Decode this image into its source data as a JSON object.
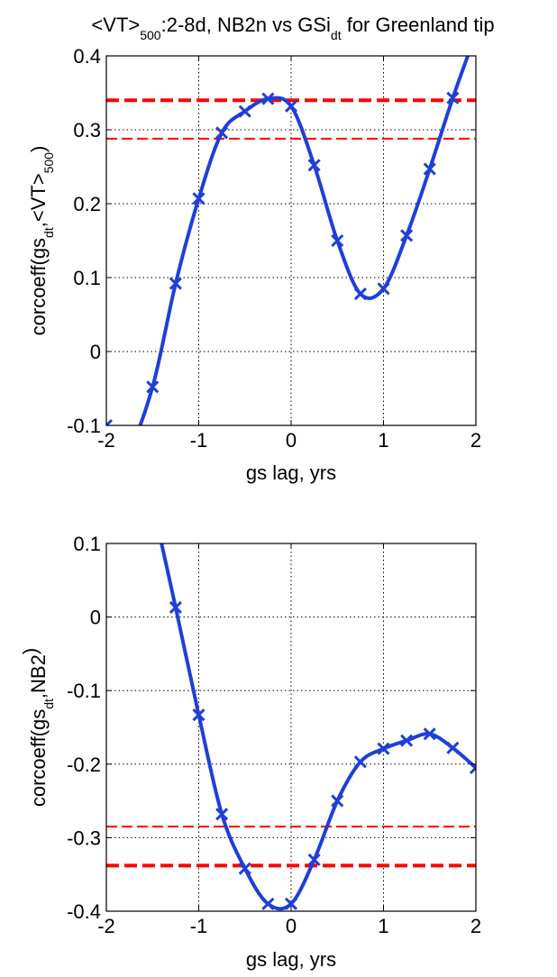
{
  "title_parts": {
    "a": "<VT>",
    "a_sub": "500",
    "b": ":2-8d, NB2n vs GSi",
    "b_sub": "dt",
    "c": " for Greenland tip"
  },
  "colors": {
    "line": "#1f3fd8",
    "sig_thick": "#ff0000",
    "sig_thin": "#ff0000",
    "grid": "#000000"
  },
  "chart_data": [
    {
      "type": "line",
      "xlabel": "gs lag, yrs",
      "ylabel_parts": {
        "a": "corcoeff(gs",
        "sub1": "dt",
        "b": ",<VT>",
        "sub2": "500",
        "c": ")"
      },
      "xlim": [
        -2,
        2
      ],
      "ylim": [
        -0.1,
        0.4
      ],
      "xticks": [
        -2,
        -1,
        0,
        1,
        2
      ],
      "xtick_labels": [
        "-2",
        "-1",
        "0",
        "1",
        "2"
      ],
      "yticks": [
        -0.1,
        0,
        0.1,
        0.2,
        0.3,
        0.4
      ],
      "ytick_labels": [
        "-0.1",
        "0",
        "0.1",
        "0.2",
        "0.3",
        "0.4"
      ],
      "grid": true,
      "x": [
        -2,
        -1.75,
        -1.5,
        -1.25,
        -1,
        -0.75,
        -0.5,
        -0.25,
        0,
        0.25,
        0.5,
        0.75,
        1,
        1.25,
        1.5,
        1.75,
        2
      ],
      "values": [
        -0.1,
        -0.125,
        -0.048,
        0.092,
        0.207,
        0.296,
        0.325,
        0.342,
        0.332,
        0.252,
        0.15,
        0.078,
        0.085,
        0.157,
        0.247,
        0.343,
        0.43
      ],
      "significance_lines": {
        "thick": 0.34,
        "thin": 0.288
      }
    },
    {
      "type": "line",
      "xlabel": "gs lag, yrs",
      "ylabel_parts": {
        "a": "corcoeff(gs",
        "sub1": "dt",
        "b": ",NB2",
        "sub2": "",
        "c": ")"
      },
      "xlim": [
        -2,
        2
      ],
      "ylim": [
        -0.4,
        0.1
      ],
      "xticks": [
        -2,
        -1,
        0,
        1,
        2
      ],
      "xtick_labels": [
        "-2",
        "-1",
        "0",
        "1",
        "2"
      ],
      "yticks": [
        -0.4,
        -0.3,
        -0.2,
        -0.1,
        0,
        0.1
      ],
      "ytick_labels": [
        "-0.4",
        "-0.3",
        "-0.2",
        "-0.1",
        "0",
        "0.1"
      ],
      "grid": true,
      "x": [
        -1.5,
        -1.25,
        -1,
        -0.75,
        -0.5,
        -0.25,
        0,
        0.25,
        0.5,
        0.75,
        1,
        1.25,
        1.5,
        1.75,
        2
      ],
      "values": [
        0.155,
        0.013,
        -0.133,
        -0.268,
        -0.342,
        -0.39,
        -0.39,
        -0.33,
        -0.25,
        -0.197,
        -0.179,
        -0.168,
        -0.159,
        -0.178,
        -0.205
      ],
      "significance_lines": {
        "thick": -0.338,
        "thin": -0.285
      }
    }
  ]
}
